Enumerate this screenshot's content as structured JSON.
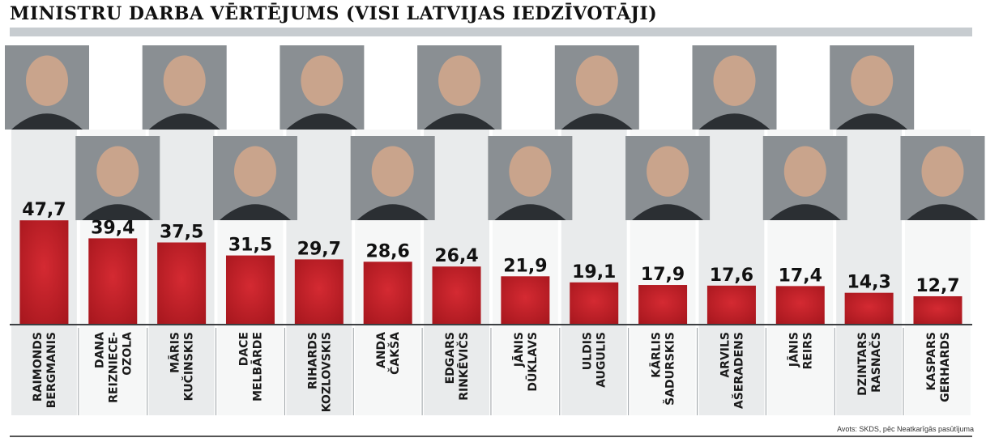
{
  "chart_data": {
    "type": "bar",
    "title": "MINISTRU DARBA VĒRTĒJUMS (VISI LATVIJAS IEDZĪVOTĀJI)",
    "categories": [
      [
        "RAIMONDS",
        "BERGMANIS"
      ],
      [
        "DANA",
        "REIZNIECE-",
        "OZOLA"
      ],
      [
        "MĀRIS",
        "KUČINSKIS"
      ],
      [
        "DACE",
        "MELBĀRDE"
      ],
      [
        "RIHARDS",
        "KOZLOVSKIS"
      ],
      [
        "ANDA",
        "ČAKŠA"
      ],
      [
        "EDGARS",
        "RINKĒVIČS"
      ],
      [
        "JĀNIS",
        "DŪKLAVS"
      ],
      [
        "ULDIS",
        "AUGULIS"
      ],
      [
        "KĀRLIS",
        "ŠADURSKIS"
      ],
      [
        "ARVILS",
        "AŠERADENS"
      ],
      [
        "JĀNIS",
        "REIRS"
      ],
      [
        "DZINTARS",
        "RASNAČS"
      ],
      [
        "KASPARS",
        "GERHARDS"
      ]
    ],
    "values": [
      47.7,
      39.4,
      37.5,
      31.5,
      29.7,
      28.6,
      26.4,
      21.9,
      19.1,
      17.9,
      17.6,
      17.4,
      14.3,
      12.7
    ],
    "value_labels": [
      "47,7",
      "39,4",
      "37,5",
      "31,5",
      "29,7",
      "28,6",
      "26,4",
      "21,9",
      "19,1",
      "17,9",
      "17,6",
      "17,4",
      "14,3",
      "12,7"
    ],
    "ylim": [
      0,
      50
    ],
    "grid": false,
    "xlabel": "",
    "ylabel": "",
    "colors": {
      "bar": "#d42a32",
      "bar_dark": "#a5161d",
      "column_bg": "#e9ebec",
      "value_text": "#111111",
      "name_text": "#1a1a1a",
      "photo_placeholder": "#8a8f93"
    }
  },
  "source_label": "Avots: SKDS, pēc Neatkarīgās pasūtījuma"
}
